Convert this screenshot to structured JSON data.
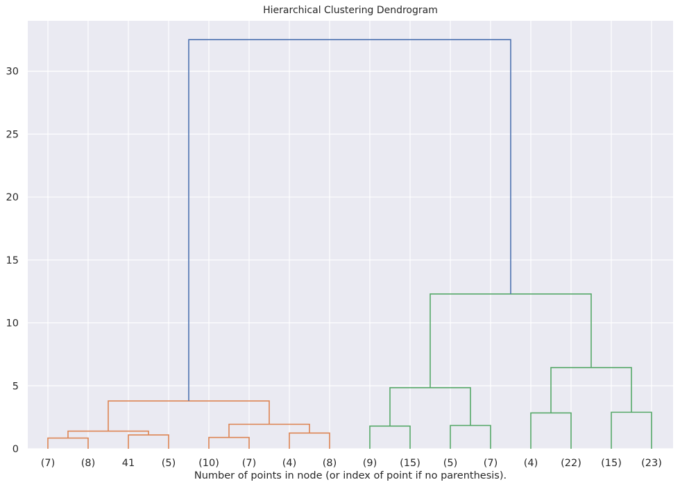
{
  "chart_data": {
    "type": "dendrogram",
    "title": "Hierarchical Clustering Dendrogram",
    "xlabel": "Number of points in node (or index of point if no parenthesis).",
    "ylabel": "",
    "ylim": [
      0,
      34
    ],
    "yticks": [
      0,
      5,
      10,
      15,
      20,
      25,
      30
    ],
    "grid": true,
    "leaf_labels": [
      "(7)",
      "(8)",
      "41",
      "(5)",
      "(10)",
      "(7)",
      "(4)",
      "(8)",
      "(9)",
      "(15)",
      "(5)",
      "(7)",
      "(4)",
      "(22)",
      "(15)",
      "(23)"
    ],
    "colors": {
      "orange_cluster": "#dd8452",
      "green_cluster": "#55a868",
      "above_threshold": "#4c72b0",
      "background": "#eaeaf2",
      "grid": "#ffffff"
    },
    "links": [
      {
        "left": 0,
        "right": 1,
        "height": 0.85,
        "color": "orange_cluster"
      },
      {
        "left": 2,
        "right": 3,
        "height": 1.1,
        "color": "orange_cluster"
      },
      {
        "left": 16,
        "right": 17,
        "height": 1.4,
        "color": "orange_cluster"
      },
      {
        "left": 4,
        "right": 5,
        "height": 0.9,
        "color": "orange_cluster"
      },
      {
        "left": 6,
        "right": 7,
        "height": 1.25,
        "color": "orange_cluster"
      },
      {
        "left": 19,
        "right": 20,
        "height": 1.95,
        "color": "orange_cluster"
      },
      {
        "left": 18,
        "right": 21,
        "height": 3.8,
        "color": "orange_cluster"
      },
      {
        "left": 8,
        "right": 9,
        "height": 1.8,
        "color": "green_cluster"
      },
      {
        "left": 10,
        "right": 11,
        "height": 1.85,
        "color": "green_cluster"
      },
      {
        "left": 23,
        "right": 24,
        "height": 4.85,
        "color": "green_cluster"
      },
      {
        "left": 12,
        "right": 13,
        "height": 2.85,
        "color": "green_cluster"
      },
      {
        "left": 14,
        "right": 15,
        "height": 2.9,
        "color": "green_cluster"
      },
      {
        "left": 26,
        "right": 27,
        "height": 6.45,
        "color": "green_cluster"
      },
      {
        "left": 25,
        "right": 28,
        "height": 12.3,
        "color": "green_cluster"
      },
      {
        "left": 22,
        "right": 29,
        "height": 32.5,
        "color": "above_threshold"
      }
    ]
  }
}
